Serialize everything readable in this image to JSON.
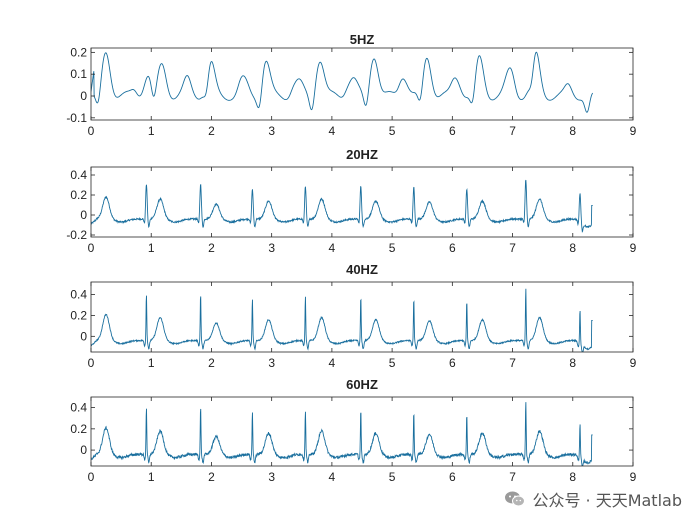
{
  "watermark": {
    "text": "公众号 · 天天Matlab",
    "icon": "wechat-icon"
  },
  "colors": {
    "trace": "#1a6f9e",
    "axis": "#262626"
  },
  "chart_data": [
    {
      "type": "line",
      "title": "5HZ",
      "xlim": [
        0,
        9
      ],
      "ylim": [
        -0.11,
        0.22
      ],
      "xticks": [
        0,
        1,
        2,
        3,
        4,
        5,
        6,
        7,
        8,
        9
      ],
      "yticks": [
        -0.1,
        0,
        0.1,
        0.2
      ],
      "ytick_labels": [
        "-0.1",
        "0",
        "0.1",
        "0.2"
      ],
      "signal_end": 8.33,
      "r_peaks": [
        0.0,
        0.92,
        1.8,
        2.68,
        3.55,
        4.45,
        5.35,
        6.22,
        7.2,
        8.12
      ],
      "beats": [
        {
          "t": 0.25,
          "h": 0.2
        },
        {
          "t": 0.95,
          "h": 0.1
        },
        {
          "t": 1.18,
          "h": 0.14
        },
        {
          "t": 1.6,
          "h": 0.05
        },
        {
          "t": 1.98,
          "h": 0.16
        },
        {
          "t": 2.55,
          "h": 0.06
        },
        {
          "t": 2.9,
          "h": 0.16
        },
        {
          "t": 3.45,
          "h": 0.06
        },
        {
          "t": 3.8,
          "h": 0.17
        },
        {
          "t": 4.35,
          "h": 0.08
        },
        {
          "t": 4.7,
          "h": 0.19
        },
        {
          "t": 5.2,
          "h": 0.08
        },
        {
          "t": 5.58,
          "h": 0.18
        },
        {
          "t": 6.08,
          "h": 0.07
        },
        {
          "t": 6.45,
          "h": 0.17
        },
        {
          "t": 6.95,
          "h": 0.1
        },
        {
          "t": 7.38,
          "h": 0.2
        },
        {
          "t": 7.95,
          "h": 0.02
        },
        {
          "t": 8.15,
          "h": 0.0
        }
      ],
      "baseline": 0.0,
      "noise": 0.0
    },
    {
      "type": "line",
      "title": "20HZ",
      "xlim": [
        0,
        9
      ],
      "ylim": [
        -0.22,
        0.48
      ],
      "xticks": [
        0,
        1,
        2,
        3,
        4,
        5,
        6,
        7,
        8,
        9
      ],
      "yticks": [
        -0.2,
        0,
        0.2,
        0.4
      ],
      "ytick_labels": [
        "-0.2",
        "0",
        "0.2",
        "0.4"
      ],
      "signal_end": 8.33,
      "r_peaks": [
        0.92,
        1.82,
        2.68,
        3.56,
        4.48,
        5.36,
        6.24,
        7.22,
        8.12
      ],
      "r_heights": [
        0.35,
        0.35,
        0.3,
        0.33,
        0.33,
        0.32,
        0.3,
        0.4,
        0.28
      ],
      "t_waves": [
        0.25,
        1.15,
        2.08,
        2.95,
        3.83,
        4.73,
        5.62,
        6.5,
        7.45
      ],
      "t_heights": [
        0.22,
        0.2,
        0.15,
        0.18,
        0.2,
        0.18,
        0.17,
        0.18,
        0.2
      ],
      "baseline": 0.0,
      "noise": 0.008
    },
    {
      "type": "line",
      "title": "40HZ",
      "xlim": [
        0,
        9
      ],
      "ylim": [
        -0.15,
        0.52
      ],
      "xticks": [
        0,
        1,
        2,
        3,
        4,
        5,
        6,
        7,
        8,
        9
      ],
      "yticks": [
        0,
        0.2,
        0.4
      ],
      "ytick_labels": [
        "0",
        "0.2",
        "0.4"
      ],
      "signal_end": 8.33,
      "r_peaks": [
        0.92,
        1.82,
        2.68,
        3.56,
        4.48,
        5.36,
        6.24,
        7.22,
        8.12
      ],
      "r_heights": [
        0.45,
        0.45,
        0.4,
        0.42,
        0.42,
        0.4,
        0.38,
        0.5,
        0.32
      ],
      "t_waves": [
        0.25,
        1.15,
        2.08,
        2.95,
        3.83,
        4.73,
        5.62,
        6.5,
        7.45
      ],
      "t_heights": [
        0.25,
        0.22,
        0.17,
        0.2,
        0.22,
        0.2,
        0.19,
        0.2,
        0.22
      ],
      "baseline": 0.0,
      "noise": 0.006
    },
    {
      "type": "line",
      "title": "60HZ",
      "xlim": [
        0,
        9
      ],
      "ylim": [
        -0.15,
        0.5
      ],
      "xticks": [
        0,
        1,
        2,
        3,
        4,
        5,
        6,
        7,
        8,
        9
      ],
      "yticks": [
        0,
        0.2,
        0.4
      ],
      "ytick_labels": [
        "0",
        "0.2",
        "0.4"
      ],
      "signal_end": 8.33,
      "r_peaks": [
        0.92,
        1.82,
        2.68,
        3.56,
        4.48,
        5.36,
        6.24,
        7.22,
        8.12
      ],
      "r_heights": [
        0.45,
        0.45,
        0.4,
        0.42,
        0.42,
        0.4,
        0.38,
        0.5,
        0.32
      ],
      "t_waves": [
        0.25,
        1.15,
        2.08,
        2.95,
        3.83,
        4.73,
        5.62,
        6.5,
        7.45
      ],
      "t_heights": [
        0.25,
        0.22,
        0.17,
        0.2,
        0.22,
        0.2,
        0.19,
        0.2,
        0.22
      ],
      "baseline": 0.0,
      "noise": 0.012
    }
  ]
}
